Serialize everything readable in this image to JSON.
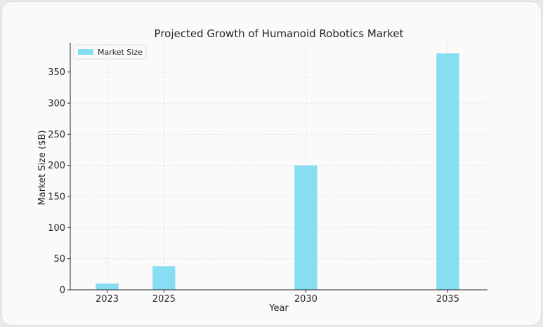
{
  "chart_data": {
    "type": "bar",
    "title": "Projected Growth of Humanoid Robotics Market",
    "xlabel": "Year",
    "ylabel": "Market Size ($B)",
    "x": [
      2023,
      2025,
      2030,
      2035
    ],
    "categories": [
      "2023",
      "2025",
      "2030",
      "2035"
    ],
    "series": [
      {
        "name": "Market Size",
        "values": [
          10,
          38,
          200,
          380
        ],
        "color": "#87ddf2"
      }
    ],
    "xlim": [
      2021.7,
      2036.4
    ],
    "ylim": [
      0,
      397
    ],
    "yticks": [
      0,
      50,
      100,
      150,
      200,
      250,
      300,
      350
    ],
    "grid": true,
    "legend": "top-left"
  }
}
